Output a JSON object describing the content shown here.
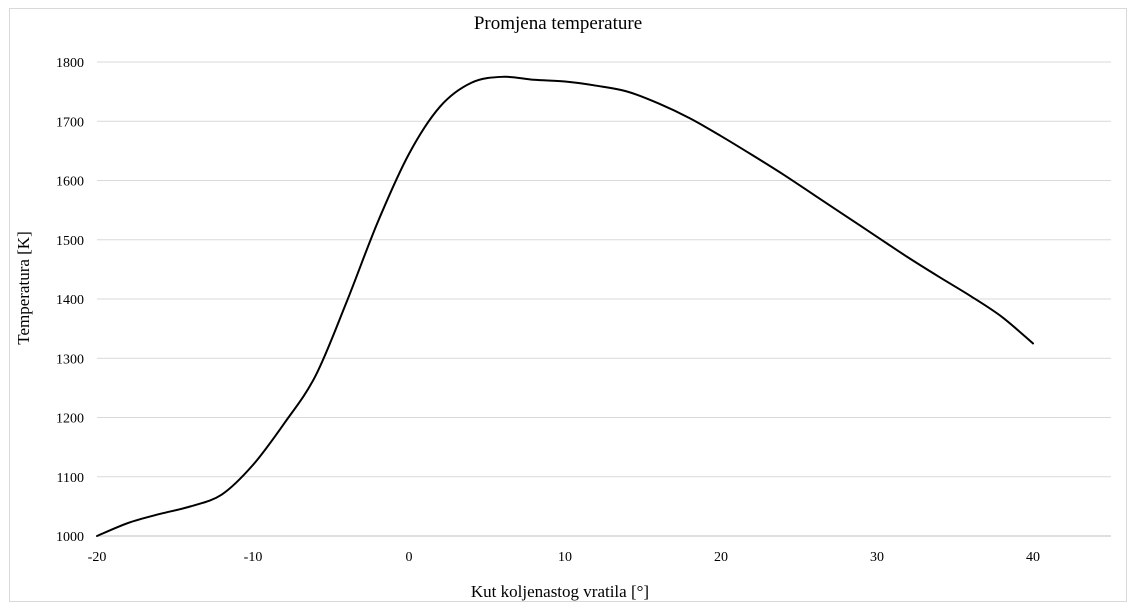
{
  "chart_data": {
    "type": "line",
    "title": "Promjena temperature",
    "xlabel": "Kut koljenastog vratila [°]",
    "ylabel": "Temperatura [K]",
    "xlim": [
      -20,
      45
    ],
    "ylim": [
      1000,
      1800
    ],
    "xticks": [
      -20,
      -10,
      0,
      10,
      20,
      30,
      40
    ],
    "yticks": [
      1000,
      1100,
      1200,
      1300,
      1400,
      1500,
      1600,
      1700,
      1800
    ],
    "grid": true,
    "legend": "none",
    "series": [
      {
        "color": "#000000",
        "x": [
          -20,
          -18,
          -16,
          -14,
          -12,
          -10,
          -8,
          -6,
          -4,
          -2,
          0,
          2,
          4,
          6,
          8,
          10,
          12,
          14,
          16,
          18,
          20,
          22,
          24,
          26,
          28,
          30,
          32,
          34,
          36,
          38,
          40
        ],
        "y": [
          1000,
          1022,
          1037,
          1050,
          1070,
          1120,
          1190,
          1270,
          1395,
          1530,
          1645,
          1725,
          1765,
          1775,
          1770,
          1767,
          1760,
          1750,
          1730,
          1705,
          1675,
          1643,
          1610,
          1575,
          1540,
          1505,
          1470,
          1437,
          1405,
          1370,
          1325
        ]
      }
    ]
  }
}
